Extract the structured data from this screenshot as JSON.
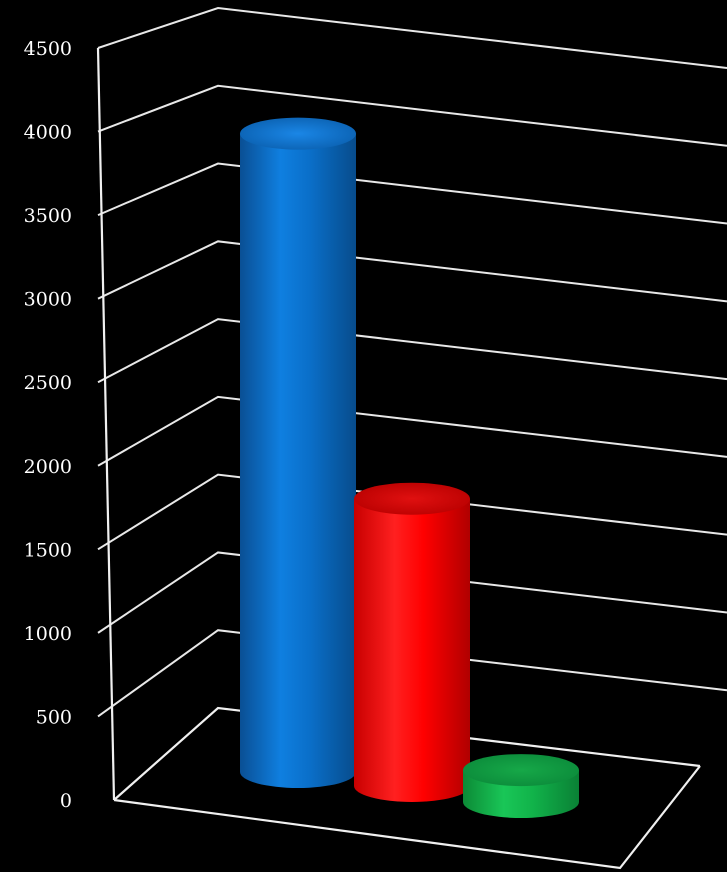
{
  "chart_data": {
    "type": "bar",
    "style": "3d-cylinder",
    "title": "",
    "xlabel": "",
    "ylabel": "",
    "ylim": [
      0,
      4500
    ],
    "yticks": [
      0,
      500,
      1000,
      1500,
      2000,
      2500,
      3000,
      3500,
      4000,
      4500
    ],
    "grid": true,
    "legend": "none",
    "categories": [
      "",
      "",
      ""
    ],
    "values": [
      4000,
      1800,
      200
    ],
    "colors": [
      "#0a6fc9",
      "#ff0000",
      "#11b34a"
    ]
  }
}
